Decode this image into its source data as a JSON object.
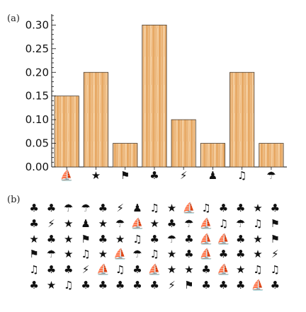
{
  "panel_a_label": "(a)",
  "panel_b_label": "(b)",
  "icons": {
    "boat": "boat-icon",
    "star": "star-icon",
    "flag": "flag-icon",
    "club": "club-icon",
    "bolt": "lightning-icon",
    "pawn": "pawn-icon",
    "note": "music-note-icon",
    "umbrella": "umbrella-icon"
  },
  "chart_data": {
    "type": "bar",
    "categories": [
      "⛵",
      "★",
      "⚑",
      "♣",
      "⚡",
      "♟",
      "♫",
      "☂"
    ],
    "category_icons": [
      "boat-icon",
      "star-icon",
      "flag-icon",
      "club-icon",
      "lightning-icon",
      "pawn-icon",
      "music-note-icon",
      "umbrella-icon"
    ],
    "values": [
      0.15,
      0.2,
      0.05,
      0.3,
      0.1,
      0.05,
      0.2,
      0.05
    ],
    "yticks": [
      "0.00",
      "0.05",
      "0.10",
      "0.15",
      "0.20",
      "0.25",
      "0.30"
    ],
    "ylim": [
      0,
      0.32
    ],
    "bar_color": "#e8a35a",
    "title": "",
    "xlabel": "",
    "ylabel": ""
  },
  "symbol_grid": [
    [
      "♣",
      "♣",
      "☂",
      "☂",
      "♣",
      "⚡",
      "♟",
      "♫",
      "★",
      "⛵",
      "♫",
      "♣",
      "♣",
      "★",
      "♣"
    ],
    [
      "♣",
      "⚡",
      "★",
      "♟",
      "★",
      "☂",
      "⛵",
      "★",
      "♣",
      "☂",
      "⛵",
      "♫",
      "☂",
      "♫",
      "⚑"
    ],
    [
      "★",
      "♣",
      "★",
      "⚑",
      "♣",
      "★",
      "♫",
      "♣",
      "☂",
      "♣",
      "⛵",
      "⛵",
      "♣",
      "★",
      "⚑"
    ],
    [
      "⚑",
      "☂",
      "★",
      "♫",
      "★",
      "⛵",
      "☂",
      "♫",
      "★",
      "♣",
      "⛵",
      "♣",
      "♣",
      "★",
      "⚡"
    ],
    [
      "♫",
      "♣",
      "♣",
      "⚡",
      "⛵",
      "♫",
      "♣",
      "⛵",
      "★",
      "★",
      "♣",
      "⛵",
      "★",
      "♫",
      "♫"
    ],
    [
      "♣",
      "★",
      "♫",
      "♣",
      "♣",
      "♣",
      "♣",
      "♣",
      "⚡",
      "⚑",
      "♣",
      "♣",
      "♣",
      "⛵",
      "♣"
    ]
  ]
}
